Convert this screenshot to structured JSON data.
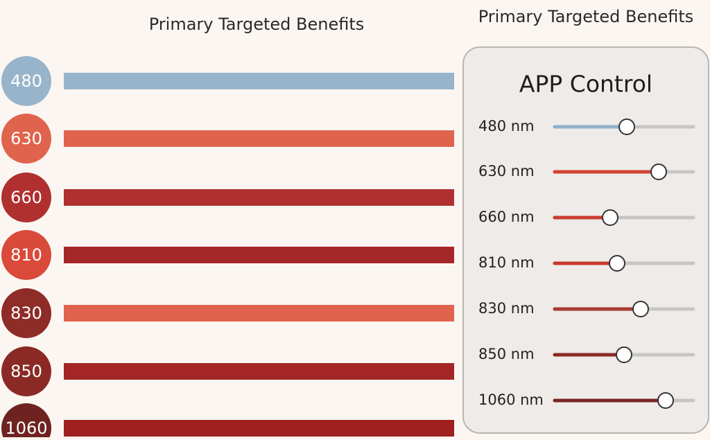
{
  "header": {
    "title": "Primary Targeted Benefits"
  },
  "wavelengths": [
    {
      "label": "480",
      "circle_color": "#97b4cb",
      "bar_color": "#97b4cb"
    },
    {
      "label": "630",
      "circle_color": "#e0634d",
      "bar_color": "#e0634d"
    },
    {
      "label": "660",
      "circle_color": "#b03030",
      "bar_color": "#b03030"
    },
    {
      "label": "810",
      "circle_color": "#d94a3a",
      "bar_color": "#a52828"
    },
    {
      "label": "830",
      "circle_color": "#8e2c28",
      "bar_color": "#e0634d"
    },
    {
      "label": "850",
      "circle_color": "#8b2a25",
      "bar_color": "#a32525"
    },
    {
      "label": "1060",
      "circle_color": "#6e2320",
      "bar_color": "#a01f1f"
    }
  ],
  "panel": {
    "heading": "Primary Targeted Benefits",
    "title": "APP Control",
    "sliders": [
      {
        "label": "480 nm",
        "value": 52,
        "color": "#8fb0c8"
      },
      {
        "label": "630 nm",
        "value": 75,
        "color": "#d44434"
      },
      {
        "label": "660 nm",
        "value": 40,
        "color": "#cc3c30"
      },
      {
        "label": "810 nm",
        "value": 45,
        "color": "#c8392e"
      },
      {
        "label": "830 nm",
        "value": 62,
        "color": "#a83a30"
      },
      {
        "label": "850 nm",
        "value": 50,
        "color": "#8a2a25"
      },
      {
        "label": "1060 nm",
        "value": 80,
        "color": "#7a2522"
      }
    ]
  }
}
